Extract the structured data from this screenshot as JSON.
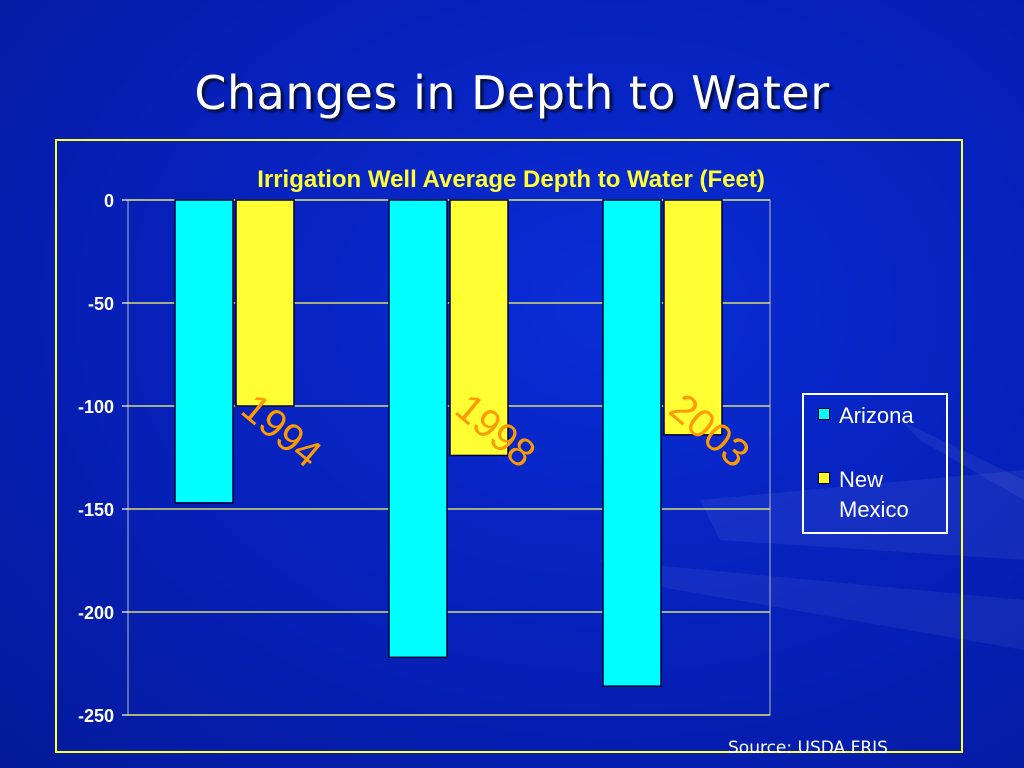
{
  "slide": {
    "title": "Changes in Depth to Water",
    "source": "Source: USDA FRIS"
  },
  "colors": {
    "background": "#0620b8",
    "frame": "#ffff33",
    "arizona": "#00ffff",
    "new_mexico": "#ffff33",
    "year_label": "#ff9900",
    "grid": "#ffff66",
    "legend_border": "#ffffff"
  },
  "chart_data": {
    "type": "bar",
    "title": "Irrigation Well Average Depth to Water (Feet)",
    "categories": [
      "1994",
      "1998",
      "2003"
    ],
    "category_labels": [
      "1994",
      "1998",
      "2003"
    ],
    "series": [
      {
        "name": "Arizona",
        "values": [
          -147,
          -222,
          -236
        ]
      },
      {
        "name": "New Mexico",
        "values": [
          -100,
          -124,
          -114
        ]
      }
    ],
    "ylim": [
      -250,
      0
    ],
    "yticks": [
      0,
      -50,
      -100,
      -150,
      -200,
      -250
    ],
    "ytick_labels": [
      "0",
      "-50",
      "-100",
      "-150",
      "-200",
      "-250"
    ],
    "grid": true,
    "legend_position": "right",
    "legend": {
      "arizona": "Arizona",
      "new_mexico": "New Mexico"
    }
  }
}
